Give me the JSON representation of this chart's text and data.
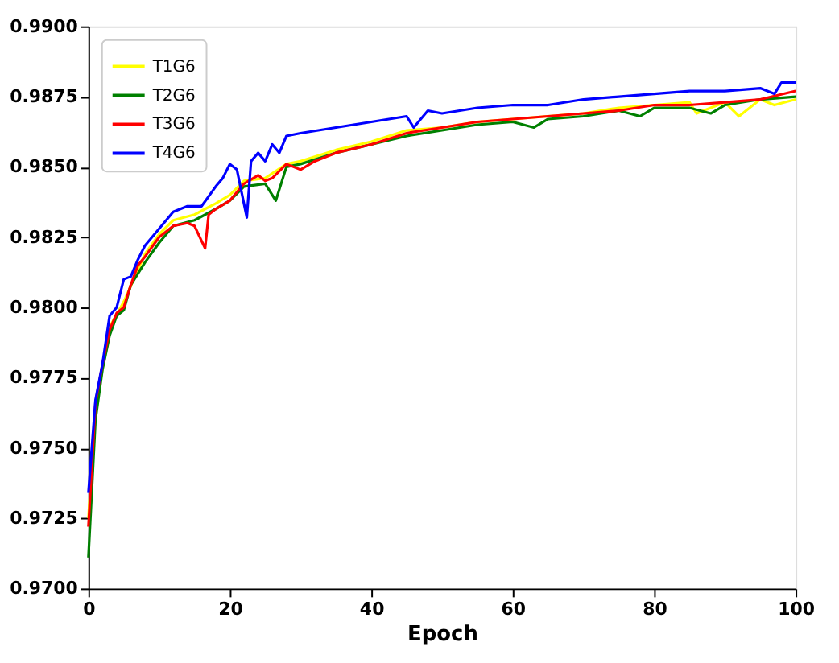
{
  "chart_data": {
    "type": "line",
    "xlabel": "Epoch",
    "xlim": [
      0,
      100
    ],
    "xticks": [
      0,
      20,
      40,
      60,
      80,
      100
    ],
    "ylim": [
      0.97,
      0.99
    ],
    "yticks": [
      {
        "value": 0.97,
        "label": "0.9700"
      },
      {
        "value": 0.9725,
        "label": "0.9725"
      },
      {
        "value": 0.975,
        "label": "0.9750"
      },
      {
        "value": 0.9775,
        "label": "0.9775"
      },
      {
        "value": 0.98,
        "label": "0.9800"
      },
      {
        "value": 0.9825,
        "label": "0.9825"
      },
      {
        "value": 0.985,
        "label": "0.9850"
      },
      {
        "value": 0.9875,
        "label": "0.9875"
      },
      {
        "value": 0.99,
        "label": "0.9900"
      }
    ],
    "grid": false,
    "legend": "top left",
    "marker": "none",
    "line_style": "solid",
    "series": [
      {
        "name": "T1G6",
        "color": "#ffff00",
        "x": [
          0,
          1,
          3,
          5,
          8,
          10,
          12,
          15,
          18,
          20,
          22,
          25,
          28,
          30,
          35,
          40,
          45,
          50,
          55,
          60,
          65,
          70,
          75,
          80,
          85,
          86,
          90,
          92,
          95,
          97,
          100
        ],
        "values": [
          0.9725,
          0.9764,
          0.9793,
          0.9802,
          0.9819,
          0.9826,
          0.9831,
          0.9833,
          0.9837,
          0.984,
          0.9845,
          0.9846,
          0.9851,
          0.9852,
          0.9856,
          0.9859,
          0.9863,
          0.9864,
          0.9866,
          0.9867,
          0.9868,
          0.9869,
          0.9871,
          0.9872,
          0.9873,
          0.9869,
          0.9873,
          0.9868,
          0.9874,
          0.9872,
          0.9874
        ]
      },
      {
        "name": "T2G6",
        "color": "#008000",
        "x": [
          0,
          1,
          2,
          3,
          4,
          5,
          6,
          8,
          10,
          12,
          15,
          18,
          20,
          22,
          25,
          26.5,
          28,
          30,
          35,
          40,
          45,
          50,
          55,
          60,
          63,
          65,
          70,
          75,
          78,
          80,
          85,
          88,
          90,
          95,
          100
        ],
        "values": [
          0.9711,
          0.976,
          0.9778,
          0.979,
          0.9797,
          0.9799,
          0.9808,
          0.9816,
          0.9823,
          0.9829,
          0.9831,
          0.9835,
          0.9838,
          0.9843,
          0.9844,
          0.9838,
          0.985,
          0.9851,
          0.9855,
          0.9858,
          0.9861,
          0.9863,
          0.9865,
          0.9866,
          0.9864,
          0.9867,
          0.9868,
          0.987,
          0.9868,
          0.9871,
          0.9871,
          0.9869,
          0.9872,
          0.9874,
          0.9875
        ]
      },
      {
        "name": "T3G6",
        "color": "#ff0000",
        "x": [
          0,
          1,
          2,
          3,
          4,
          5,
          6,
          7,
          8,
          10,
          12,
          14,
          15,
          16.5,
          17,
          18,
          20,
          22,
          24,
          25,
          26,
          28,
          30,
          32,
          35,
          40,
          45,
          50,
          55,
          60,
          65,
          70,
          75,
          80,
          85,
          90,
          95,
          100
        ],
        "values": [
          0.9722,
          0.9766,
          0.978,
          0.9792,
          0.9798,
          0.98,
          0.9808,
          0.9815,
          0.9818,
          0.9825,
          0.9829,
          0.983,
          0.9829,
          0.9821,
          0.9833,
          0.9835,
          0.9838,
          0.9844,
          0.9847,
          0.9845,
          0.9846,
          0.9851,
          0.9849,
          0.9852,
          0.9855,
          0.9858,
          0.9862,
          0.9864,
          0.9866,
          0.9867,
          0.9868,
          0.9869,
          0.987,
          0.9872,
          0.9872,
          0.9873,
          0.9874,
          0.9877
        ]
      },
      {
        "name": "T4G6",
        "color": "#0000ff",
        "x": [
          0,
          1,
          2,
          3,
          4,
          5,
          6,
          7,
          8,
          10,
          12,
          14,
          16,
          18,
          19,
          20,
          21,
          22.4,
          23,
          24,
          25,
          26,
          27,
          28,
          30,
          35,
          40,
          45,
          46,
          48,
          50,
          55,
          60,
          65,
          70,
          75,
          80,
          85,
          90,
          95,
          97,
          98,
          100
        ],
        "values": [
          0.9734,
          0.9767,
          0.978,
          0.9797,
          0.98,
          0.981,
          0.9811,
          0.9817,
          0.9822,
          0.9828,
          0.9834,
          0.9836,
          0.9836,
          0.9843,
          0.9846,
          0.9851,
          0.9849,
          0.9832,
          0.9852,
          0.9855,
          0.9852,
          0.9858,
          0.9855,
          0.9861,
          0.9862,
          0.9864,
          0.9866,
          0.9868,
          0.9864,
          0.987,
          0.9869,
          0.9871,
          0.9872,
          0.9872,
          0.9874,
          0.9875,
          0.9876,
          0.9877,
          0.9877,
          0.9878,
          0.9876,
          0.988,
          0.988
        ]
      }
    ]
  }
}
